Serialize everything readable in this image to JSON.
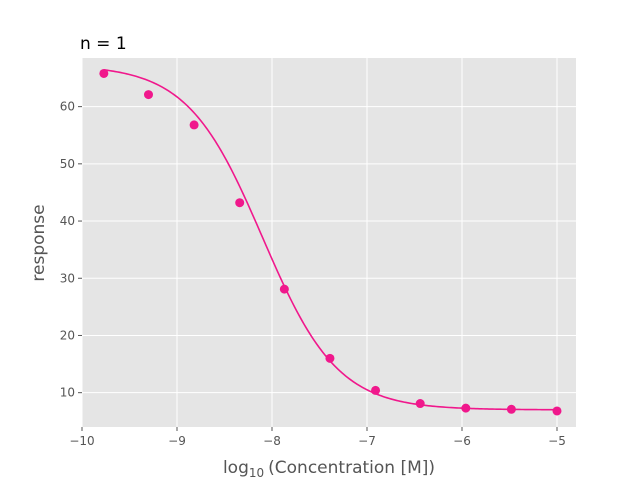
{
  "chart_data": {
    "type": "scatter",
    "title": "n = 1",
    "xlabel_base": "log",
    "xlabel_sub": "10",
    "xlabel_rest": "(Concentration [M])",
    "ylabel": "response",
    "xlim": [
      -10,
      -4.8
    ],
    "ylim": [
      4,
      68.5
    ],
    "xticks": [
      -10,
      -9,
      -8,
      -7,
      -6,
      -5
    ],
    "xtick_labels": [
      "−10",
      "−9",
      "−8",
      "−7",
      "−6",
      "−5"
    ],
    "yticks": [
      10,
      20,
      30,
      40,
      50,
      60
    ],
    "ytick_labels": [
      "10",
      "20",
      "30",
      "40",
      "50",
      "60"
    ],
    "grid": true,
    "series": [
      {
        "kind": "points",
        "color": "#f0188c",
        "x": [
          -9.77,
          -9.3,
          -8.82,
          -8.34,
          -7.87,
          -7.39,
          -6.91,
          -6.44,
          -5.96,
          -5.48,
          -5.0
        ],
        "y": [
          65.8,
          62.1,
          56.8,
          43.2,
          28.1,
          16.0,
          10.4,
          8.1,
          7.3,
          7.1,
          6.8
        ]
      },
      {
        "kind": "fit-curve",
        "color": "#f0188c",
        "model": "four-parameter logistic",
        "top": 67.3,
        "bottom": 7.0,
        "log_ic50": -8.1,
        "hill_slope": 1.1,
        "x_range": [
          -9.77,
          -5.0
        ]
      }
    ],
    "colors": {
      "plot_background": "#e5e5e5",
      "grid": "#ffffff",
      "marker": "#f0188c"
    }
  }
}
